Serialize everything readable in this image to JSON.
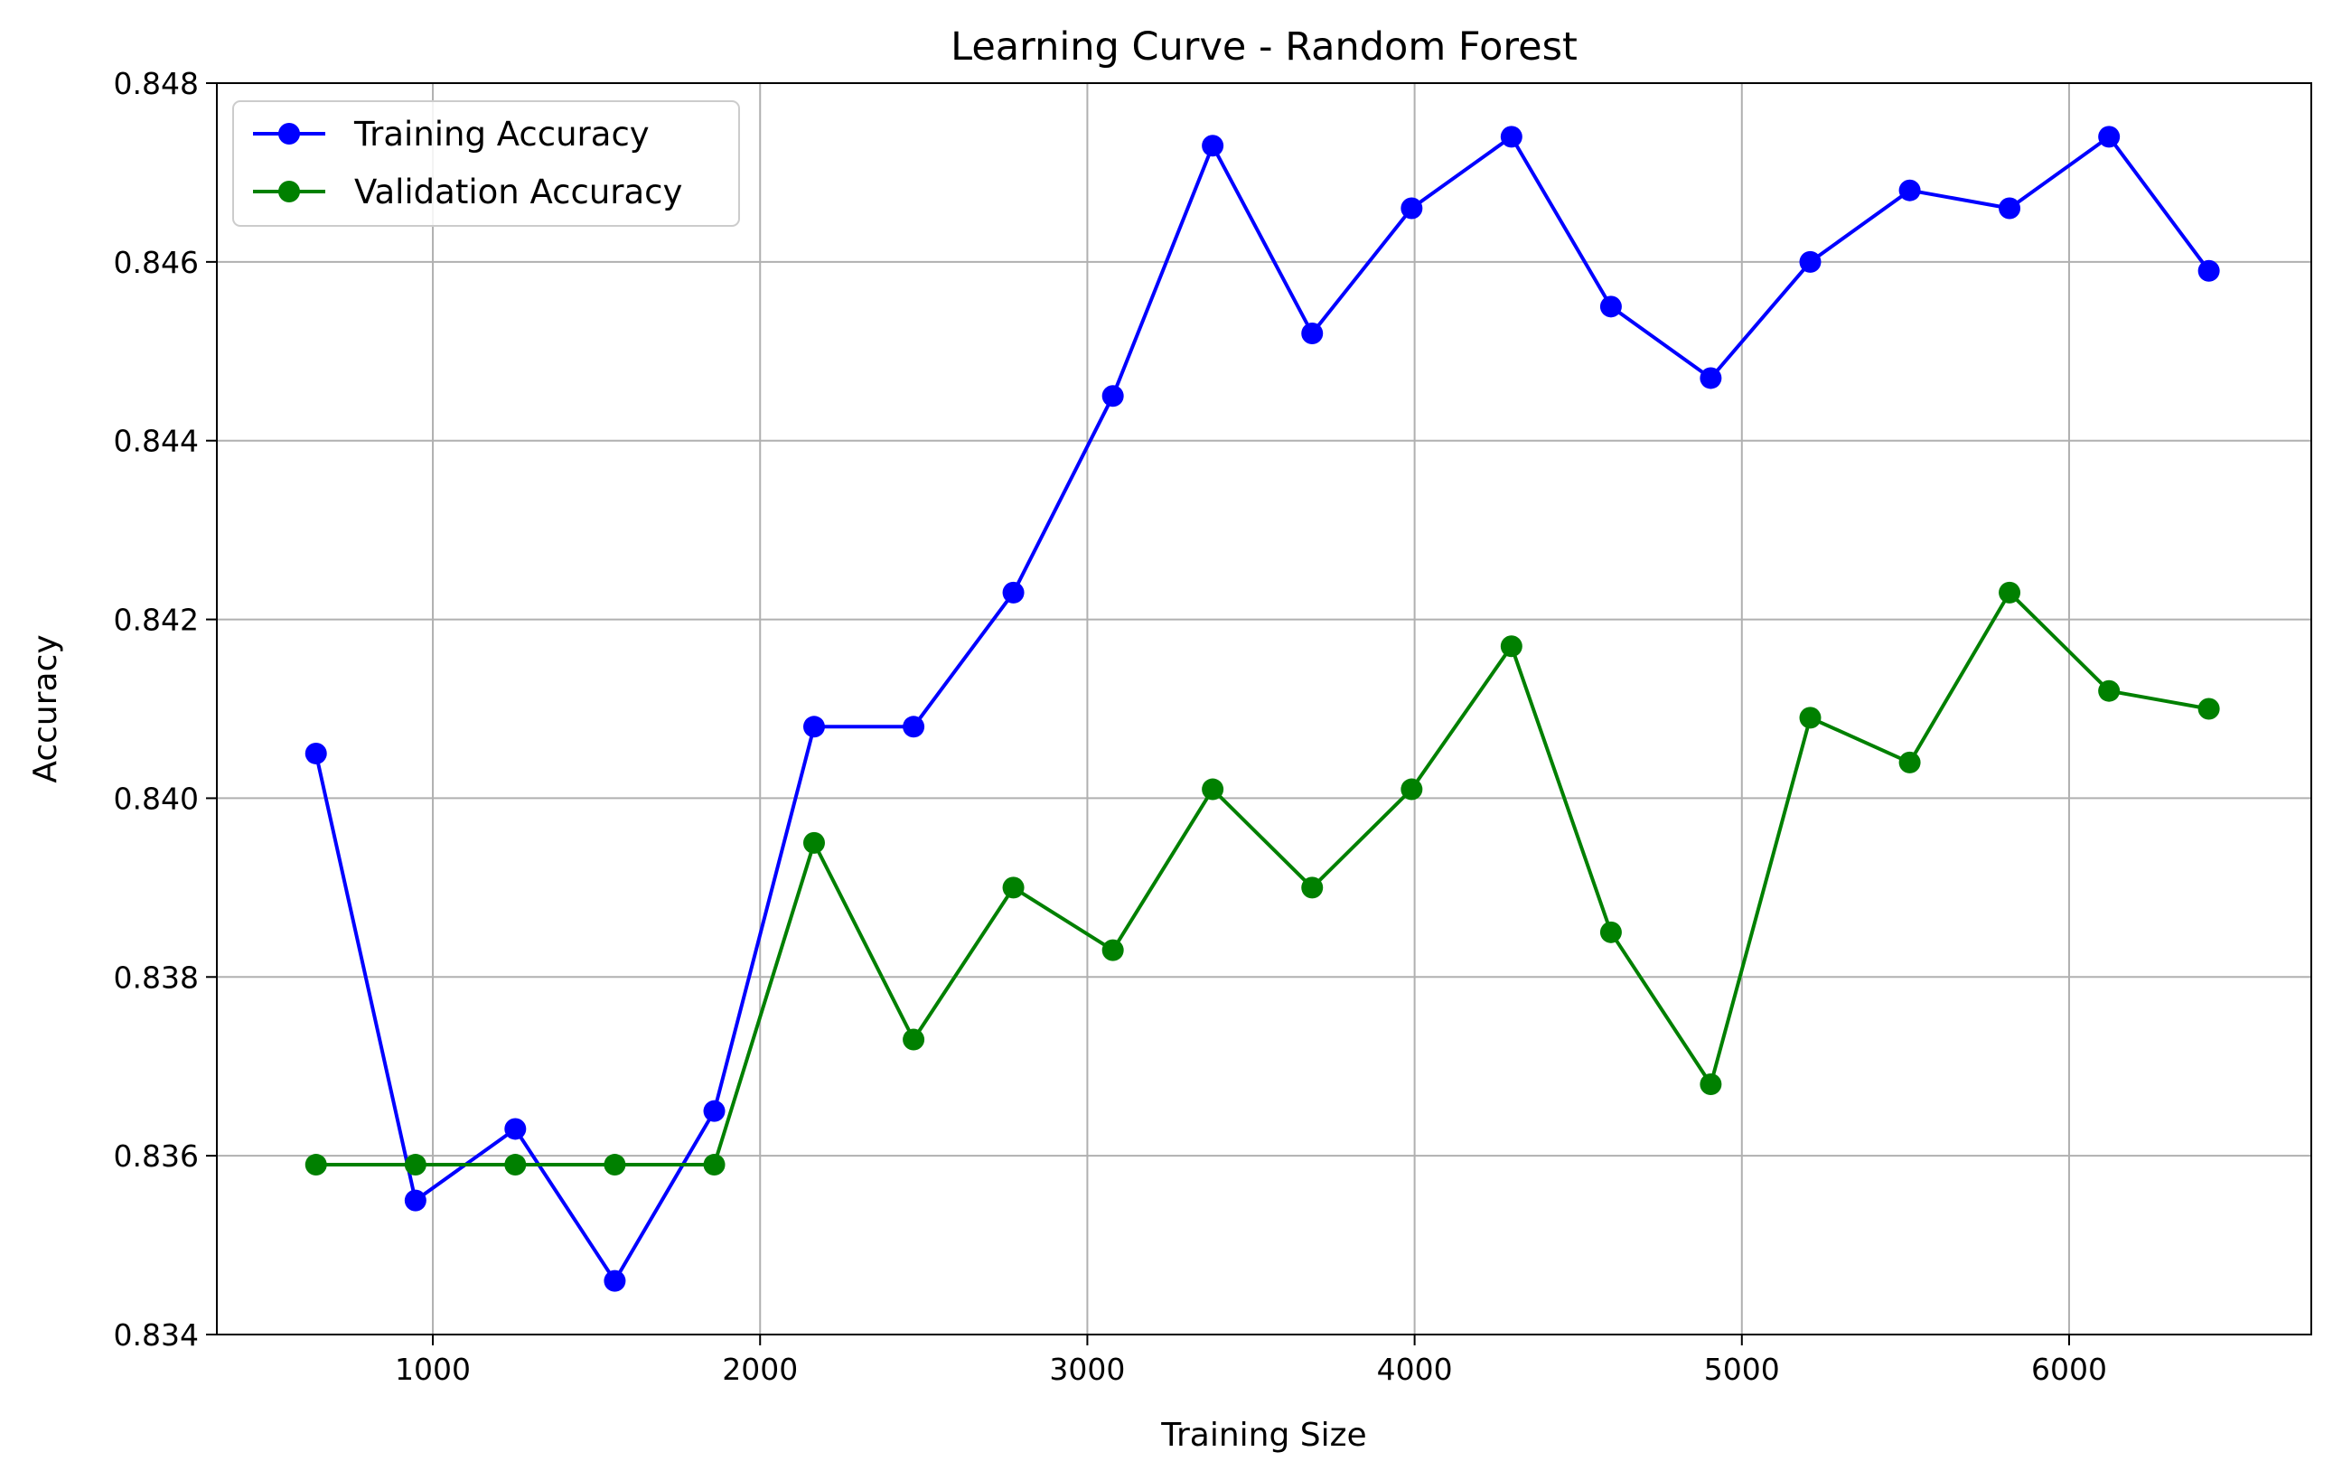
{
  "chart_data": {
    "type": "line",
    "title": "Learning Curve - Random Forest",
    "xlabel": "Training Size",
    "ylabel": "Accuracy",
    "xlim": [
      340,
      6740
    ],
    "ylim": [
      0.834,
      0.848
    ],
    "xticks": [
      1000,
      2000,
      3000,
      4000,
      5000,
      6000
    ],
    "xtick_labels": [
      "1000",
      "2000",
      "3000",
      "4000",
      "5000",
      "6000"
    ],
    "yticks": [
      0.834,
      0.836,
      0.838,
      0.84,
      0.842,
      0.844,
      0.846,
      0.848
    ],
    "ytick_labels": [
      "0.834",
      "0.836",
      "0.838",
      "0.840",
      "0.842",
      "0.844",
      "0.846",
      "0.848"
    ],
    "grid": true,
    "legend_position": "top-left",
    "x": [
      643,
      947,
      1252,
      1556,
      1860,
      2165,
      2469,
      2774,
      3078,
      3383,
      3687,
      3991,
      4296,
      4600,
      4905,
      5209,
      5513,
      5818,
      6122,
      6427
    ],
    "series": [
      {
        "name": "Training Accuracy",
        "color": "#0000ff",
        "values": [
          0.8405,
          0.8355,
          0.8363,
          0.8346,
          0.8365,
          0.8408,
          0.8408,
          0.8423,
          0.8445,
          0.8473,
          0.8452,
          0.8466,
          0.8474,
          0.8455,
          0.8447,
          0.846,
          0.8468,
          0.8466,
          0.8474,
          0.8459
        ]
      },
      {
        "name": "Validation Accuracy",
        "color": "#008000",
        "values": [
          0.8359,
          0.8359,
          0.8359,
          0.8359,
          0.8359,
          0.8395,
          0.8373,
          0.839,
          0.8383,
          0.8401,
          0.839,
          0.8401,
          0.8417,
          0.8385,
          0.8368,
          0.8409,
          0.8404,
          0.8423,
          0.8412,
          0.841
        ]
      }
    ]
  }
}
